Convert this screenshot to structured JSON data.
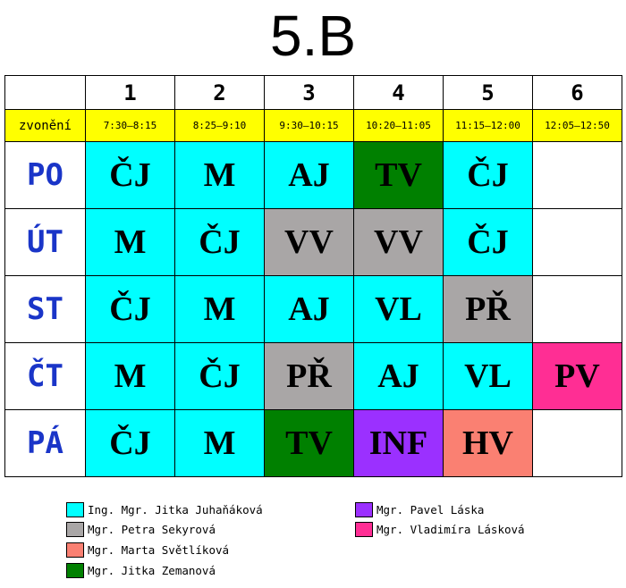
{
  "title": "5.B",
  "periods": [
    "1",
    "2",
    "3",
    "4",
    "5",
    "6"
  ],
  "bells": {
    "label": "zvonění",
    "times": [
      "7:30–8:15",
      "8:25–9:10",
      "9:30–10:15",
      "10:20–11:05",
      "11:15–12:00",
      "12:05–12:50"
    ]
  },
  "colors": {
    "cyan": "#00ffff",
    "gray": "#a9a6a6",
    "green": "#008000",
    "salmon": "#fa8072",
    "purple": "#9b30ff",
    "pink": "#ff2e94",
    "day_text": "#1a35c8",
    "bell_bg": "#ffff00"
  },
  "days": [
    {
      "name": "PO",
      "lessons": [
        {
          "subject": "ČJ",
          "color": "cyan"
        },
        {
          "subject": "M",
          "color": "cyan"
        },
        {
          "subject": "AJ",
          "color": "cyan"
        },
        {
          "subject": "TV",
          "color": "green"
        },
        {
          "subject": "ČJ",
          "color": "cyan"
        },
        {
          "subject": "",
          "color": "empty"
        }
      ]
    },
    {
      "name": "ÚT",
      "lessons": [
        {
          "subject": "M",
          "color": "cyan"
        },
        {
          "subject": "ČJ",
          "color": "cyan"
        },
        {
          "subject": "VV",
          "color": "gray"
        },
        {
          "subject": "VV",
          "color": "gray"
        },
        {
          "subject": "ČJ",
          "color": "cyan"
        },
        {
          "subject": "",
          "color": "empty"
        }
      ]
    },
    {
      "name": "ST",
      "lessons": [
        {
          "subject": "ČJ",
          "color": "cyan"
        },
        {
          "subject": "M",
          "color": "cyan"
        },
        {
          "subject": "AJ",
          "color": "cyan"
        },
        {
          "subject": "VL",
          "color": "cyan"
        },
        {
          "subject": "PŘ",
          "color": "gray"
        },
        {
          "subject": "",
          "color": "empty"
        }
      ]
    },
    {
      "name": "ČT",
      "lessons": [
        {
          "subject": "M",
          "color": "cyan"
        },
        {
          "subject": "ČJ",
          "color": "cyan"
        },
        {
          "subject": "PŘ",
          "color": "gray"
        },
        {
          "subject": "AJ",
          "color": "cyan"
        },
        {
          "subject": "VL",
          "color": "cyan"
        },
        {
          "subject": "PV",
          "color": "pink"
        }
      ]
    },
    {
      "name": "PÁ",
      "lessons": [
        {
          "subject": "ČJ",
          "color": "cyan"
        },
        {
          "subject": "M",
          "color": "cyan"
        },
        {
          "subject": "TV",
          "color": "green"
        },
        {
          "subject": "INF",
          "color": "purple"
        },
        {
          "subject": "HV",
          "color": "salmon"
        },
        {
          "subject": "",
          "color": "empty"
        }
      ]
    }
  ],
  "legend": [
    {
      "name": "Ing. Mgr. Jitka Juhaňáková",
      "color": "cyan"
    },
    {
      "name": "Mgr. Petra Sekyrová",
      "color": "gray"
    },
    {
      "name": "Mgr. Marta Světlíková",
      "color": "salmon"
    },
    {
      "name": "Mgr. Jitka Zemanová",
      "color": "green"
    },
    {
      "name": "Mgr. Pavel Láska",
      "color": "purple"
    },
    {
      "name": "Mgr. Vladimíra Lásková",
      "color": "pink"
    }
  ]
}
